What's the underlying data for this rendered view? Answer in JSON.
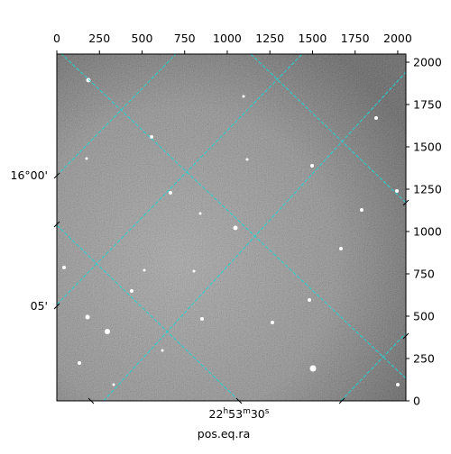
{
  "chart_data": {
    "type": "image",
    "xlabel": "pos.eq.ra",
    "xlim": [
      0,
      2048
    ],
    "ylim": [
      0,
      2048
    ],
    "xticks": [
      0,
      250,
      500,
      750,
      1000,
      1250,
      1500,
      1750,
      2000
    ],
    "yticks": [
      0,
      250,
      500,
      750,
      1000,
      1250,
      1500,
      1750,
      2000
    ],
    "ra_tick_labels": [
      [
        "22",
        "h",
        "53",
        "m",
        "30",
        "s"
      ]
    ],
    "dec_tick_labels": [
      "16°00'",
      "05'"
    ]
  }
}
